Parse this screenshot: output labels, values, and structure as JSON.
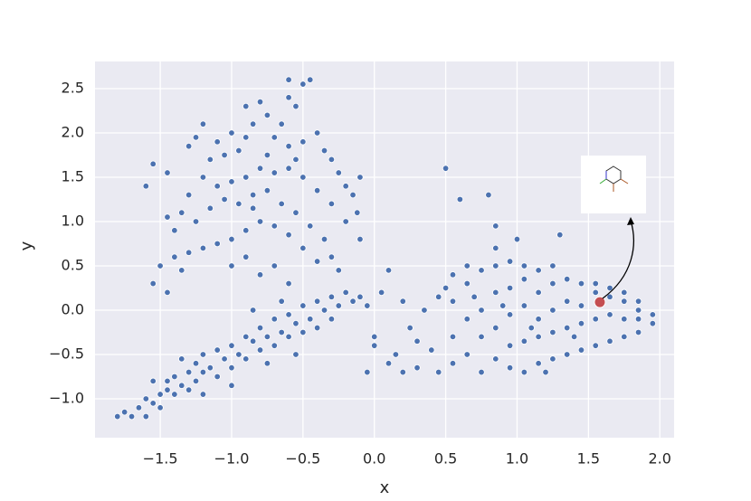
{
  "chart_data": {
    "type": "scatter",
    "xlabel": "x",
    "ylabel": "y",
    "xlim": [
      -1.957,
      2.1
    ],
    "ylim": [
      -1.439,
      2.806
    ],
    "xticks": [
      {
        "value": -1.5,
        "label": "−1.5"
      },
      {
        "value": -1.0,
        "label": "−1.0"
      },
      {
        "value": -0.5,
        "label": "−0.5"
      },
      {
        "value": 0,
        "label": "0.0"
      },
      0.5,
      {
        "value": 1,
        "label": "1.0"
      },
      1.5,
      {
        "value": 2,
        "label": "2.0"
      }
    ],
    "yticks": [
      {
        "value": -1.0,
        "label": "−1.0"
      },
      {
        "value": -0.5,
        "label": "−0.5"
      },
      {
        "value": 0,
        "label": "0.0"
      },
      0.5,
      {
        "value": 1,
        "label": "1.0"
      },
      1.5,
      {
        "value": 2,
        "label": "2.0"
      },
      2.5
    ],
    "grid": true,
    "color": "#4c72b0",
    "points": [
      [
        -0.9,
        2.3
      ],
      [
        -0.8,
        2.35
      ],
      [
        -0.75,
        2.2
      ],
      [
        -0.6,
        2.4
      ],
      [
        -0.5,
        2.55
      ],
      [
        -0.45,
        2.6
      ],
      [
        -0.55,
        2.3
      ],
      [
        -0.65,
        2.1
      ],
      [
        -0.85,
        2.1
      ],
      [
        -1.0,
        2.0
      ],
      [
        -1.1,
        1.9
      ],
      [
        -1.2,
        2.1
      ],
      [
        -1.25,
        1.95
      ],
      [
        -1.3,
        1.85
      ],
      [
        -1.15,
        1.7
      ],
      [
        -1.05,
        1.75
      ],
      [
        -0.95,
        1.8
      ],
      [
        -0.9,
        1.95
      ],
      [
        -0.7,
        1.95
      ],
      [
        -0.6,
        1.85
      ],
      [
        -0.5,
        1.9
      ],
      [
        -0.4,
        2.0
      ],
      [
        -0.35,
        1.8
      ],
      [
        -0.3,
        1.7
      ],
      [
        -0.25,
        1.55
      ],
      [
        -0.2,
        1.4
      ],
      [
        -0.15,
        1.3
      ],
      [
        -0.1,
        1.5
      ],
      [
        -0.12,
        1.1
      ],
      [
        -0.1,
        0.8
      ],
      [
        -0.2,
        1.0
      ],
      [
        -0.3,
        1.2
      ],
      [
        -0.4,
        1.35
      ],
      [
        -0.5,
        1.5
      ],
      [
        -0.6,
        1.6
      ],
      [
        -0.7,
        1.55
      ],
      [
        -0.8,
        1.6
      ],
      [
        -0.9,
        1.5
      ],
      [
        -1.0,
        1.45
      ],
      [
        -1.1,
        1.4
      ],
      [
        -1.2,
        1.5
      ],
      [
        -1.3,
        1.3
      ],
      [
        -1.35,
        1.1
      ],
      [
        -1.25,
        1.0
      ],
      [
        -1.15,
        1.15
      ],
      [
        -1.05,
        1.25
      ],
      [
        -0.95,
        1.2
      ],
      [
        -0.85,
        1.3
      ],
      [
        -0.75,
        1.35
      ],
      [
        -0.65,
        1.2
      ],
      [
        -0.55,
        1.1
      ],
      [
        -0.45,
        0.95
      ],
      [
        -0.35,
        0.8
      ],
      [
        -0.5,
        0.7
      ],
      [
        -0.6,
        0.85
      ],
      [
        -0.7,
        0.95
      ],
      [
        -0.8,
        1.0
      ],
      [
        -0.9,
        0.9
      ],
      [
        -1.0,
        0.8
      ],
      [
        -1.1,
        0.75
      ],
      [
        -1.2,
        0.7
      ],
      [
        -1.3,
        0.65
      ],
      [
        -1.4,
        0.6
      ],
      [
        -1.5,
        0.5
      ],
      [
        -1.55,
        0.3
      ],
      [
        -1.45,
        0.2
      ],
      [
        -1.35,
        0.45
      ],
      [
        -1.0,
        0.5
      ],
      [
        -0.9,
        0.6
      ],
      [
        -0.8,
        0.4
      ],
      [
        -0.7,
        0.5
      ],
      [
        -0.6,
        0.3
      ],
      [
        -0.4,
        0.55
      ],
      [
        -0.3,
        0.6
      ],
      [
        -0.25,
        0.45
      ],
      [
        -1.6,
        1.4
      ],
      [
        -1.55,
        1.65
      ],
      [
        -1.45,
        1.55
      ],
      [
        -1.45,
        1.05
      ],
      [
        -1.4,
        0.9
      ],
      [
        -0.6,
        2.6
      ],
      [
        -0.55,
        1.7
      ],
      [
        -0.75,
        1.75
      ],
      [
        -0.85,
        1.15
      ],
      [
        -1.8,
        -1.2
      ],
      [
        -1.75,
        -1.15
      ],
      [
        -1.7,
        -1.2
      ],
      [
        -1.65,
        -1.1
      ],
      [
        -1.6,
        -1.0
      ],
      [
        -1.6,
        -1.2
      ],
      [
        -1.55,
        -1.05
      ],
      [
        -1.5,
        -0.95
      ],
      [
        -1.5,
        -1.1
      ],
      [
        -1.45,
        -0.9
      ],
      [
        -1.45,
        -0.8
      ],
      [
        -1.4,
        -0.95
      ],
      [
        -1.4,
        -0.75
      ],
      [
        -1.35,
        -0.85
      ],
      [
        -1.3,
        -0.7
      ],
      [
        -1.3,
        -0.9
      ],
      [
        -1.25,
        -0.6
      ],
      [
        -1.25,
        -0.8
      ],
      [
        -1.2,
        -0.5
      ],
      [
        -1.2,
        -0.7
      ],
      [
        -1.15,
        -0.65
      ],
      [
        -1.1,
        -0.45
      ],
      [
        -1.1,
        -0.75
      ],
      [
        -1.05,
        -0.55
      ],
      [
        -1.0,
        -0.4
      ],
      [
        -1.0,
        -0.65
      ],
      [
        -0.95,
        -0.5
      ],
      [
        -0.9,
        -0.3
      ],
      [
        -0.9,
        -0.55
      ],
      [
        -0.85,
        -0.35
      ],
      [
        -0.8,
        -0.2
      ],
      [
        -0.8,
        -0.45
      ],
      [
        -0.75,
        -0.3
      ],
      [
        -0.7,
        -0.1
      ],
      [
        -0.7,
        -0.4
      ],
      [
        -0.65,
        -0.25
      ],
      [
        -0.6,
        -0.05
      ],
      [
        -0.6,
        -0.3
      ],
      [
        -0.55,
        -0.15
      ],
      [
        -0.5,
        0.05
      ],
      [
        -0.5,
        -0.25
      ],
      [
        -0.45,
        -0.1
      ],
      [
        -0.4,
        0.1
      ],
      [
        -0.4,
        -0.2
      ],
      [
        -0.35,
        0.0
      ],
      [
        -0.3,
        0.15
      ],
      [
        -0.3,
        -0.1
      ],
      [
        -0.25,
        0.05
      ],
      [
        -0.2,
        0.2
      ],
      [
        -0.15,
        0.1
      ],
      [
        -0.1,
        0.15
      ],
      [
        -0.05,
        0.05
      ],
      [
        -1.0,
        -0.85
      ],
      [
        -1.2,
        -0.95
      ],
      [
        -0.75,
        -0.6
      ],
      [
        -0.55,
        -0.5
      ],
      [
        -1.35,
        -0.55
      ],
      [
        -1.55,
        -0.8
      ],
      [
        -0.85,
        0.0
      ],
      [
        -0.65,
        0.1
      ],
      [
        0.0,
        -0.3
      ],
      [
        0.05,
        0.2
      ],
      [
        0.1,
        -0.6
      ],
      [
        0.15,
        -0.5
      ],
      [
        0.2,
        -0.7
      ],
      [
        0.25,
        -0.2
      ],
      [
        0.3,
        -0.65
      ],
      [
        0.35,
        0.0
      ],
      [
        0.4,
        -0.45
      ],
      [
        0.45,
        0.15
      ],
      [
        0.1,
        0.45
      ],
      [
        0.0,
        -0.4
      ],
      [
        -0.05,
        -0.7
      ],
      [
        0.3,
        -0.35
      ],
      [
        0.2,
        0.1
      ],
      [
        0.5,
        1.6
      ],
      [
        0.6,
        1.25
      ],
      [
        0.8,
        1.3
      ],
      [
        0.85,
        0.95
      ],
      [
        0.5,
        0.25
      ],
      [
        0.45,
        -0.7
      ],
      [
        0.55,
        -0.3
      ],
      [
        0.55,
        0.1
      ],
      [
        0.55,
        0.4
      ],
      [
        0.55,
        -0.6
      ],
      [
        0.65,
        -0.5
      ],
      [
        0.65,
        -0.1
      ],
      [
        0.65,
        0.3
      ],
      [
        0.65,
        0.5
      ],
      [
        0.75,
        -0.7
      ],
      [
        0.75,
        -0.3
      ],
      [
        0.75,
        0.0
      ],
      [
        0.75,
        0.45
      ],
      [
        0.85,
        -0.55
      ],
      [
        0.85,
        -0.2
      ],
      [
        0.85,
        0.2
      ],
      [
        0.85,
        0.5
      ],
      [
        0.85,
        0.7
      ],
      [
        0.95,
        -0.65
      ],
      [
        0.95,
        -0.4
      ],
      [
        0.95,
        -0.05
      ],
      [
        0.95,
        0.25
      ],
      [
        0.95,
        0.55
      ],
      [
        1.05,
        -0.7
      ],
      [
        1.05,
        -0.35
      ],
      [
        1.05,
        0.05
      ],
      [
        1.05,
        0.35
      ],
      [
        1.05,
        0.5
      ],
      [
        1.15,
        -0.6
      ],
      [
        1.15,
        -0.3
      ],
      [
        1.15,
        -0.1
      ],
      [
        1.15,
        0.2
      ],
      [
        1.15,
        0.45
      ],
      [
        1.25,
        -0.55
      ],
      [
        1.25,
        -0.25
      ],
      [
        1.25,
        0.0
      ],
      [
        1.25,
        0.3
      ],
      [
        1.25,
        0.5
      ],
      [
        1.35,
        -0.5
      ],
      [
        1.35,
        -0.2
      ],
      [
        1.35,
        0.1
      ],
      [
        1.35,
        0.35
      ],
      [
        1.45,
        -0.45
      ],
      [
        1.45,
        -0.15
      ],
      [
        1.45,
        0.05
      ],
      [
        1.45,
        0.3
      ],
      [
        1.55,
        -0.4
      ],
      [
        1.55,
        -0.1
      ],
      [
        1.55,
        0.2
      ],
      [
        1.55,
        0.3
      ],
      [
        1.65,
        -0.35
      ],
      [
        1.65,
        -0.05
      ],
      [
        1.65,
        0.15
      ],
      [
        1.65,
        0.25
      ],
      [
        1.75,
        -0.3
      ],
      [
        1.75,
        -0.1
      ],
      [
        1.75,
        0.1
      ],
      [
        1.75,
        0.2
      ],
      [
        1.85,
        -0.25
      ],
      [
        1.85,
        0.0
      ],
      [
        1.85,
        0.1
      ],
      [
        1.85,
        -0.1
      ],
      [
        1.95,
        -0.15
      ],
      [
        1.95,
        -0.05
      ],
      [
        1.3,
        0.85
      ],
      [
        1.0,
        0.8
      ],
      [
        1.2,
        -0.7
      ],
      [
        0.7,
        0.15
      ],
      [
        0.9,
        0.05
      ],
      [
        1.1,
        -0.2
      ],
      [
        1.4,
        -0.3
      ]
    ],
    "highlight": {
      "x": 1.58,
      "y": 0.09,
      "color": "#c44e52"
    }
  }
}
